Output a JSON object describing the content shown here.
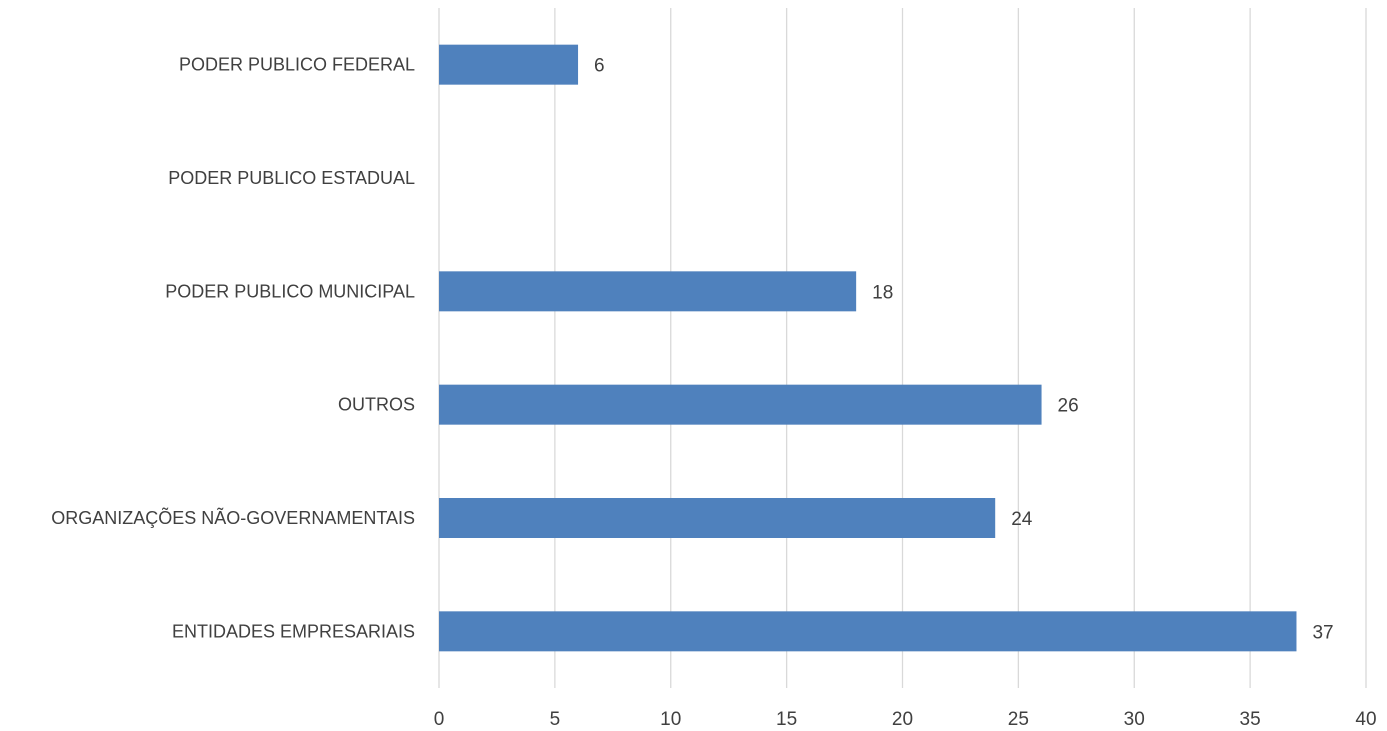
{
  "colors": {
    "bar": "#4f81bd",
    "grid": "#d9d9d9",
    "text": "#404040"
  },
  "chart_data": {
    "type": "bar",
    "orientation": "horizontal",
    "categories": [
      "PODER PUBLICO FEDERAL",
      "PODER PUBLICO ESTADUAL",
      "PODER PUBLICO MUNICIPAL",
      "OUTROS",
      "ORGANIZAÇÕES NÃO-GOVERNAMENTAIS",
      "ENTIDADES EMPRESARIAIS"
    ],
    "values": [
      6,
      null,
      18,
      26,
      24,
      37
    ],
    "data_labels": [
      "6",
      "",
      "18",
      "26",
      "24",
      "37"
    ],
    "x_ticks": [
      "0",
      "5",
      "10",
      "15",
      "20",
      "25",
      "30",
      "35",
      "40"
    ],
    "xlim": [
      0,
      40
    ],
    "title": "",
    "xlabel": "",
    "ylabel": "",
    "grid": "vertical",
    "legend": "none"
  }
}
